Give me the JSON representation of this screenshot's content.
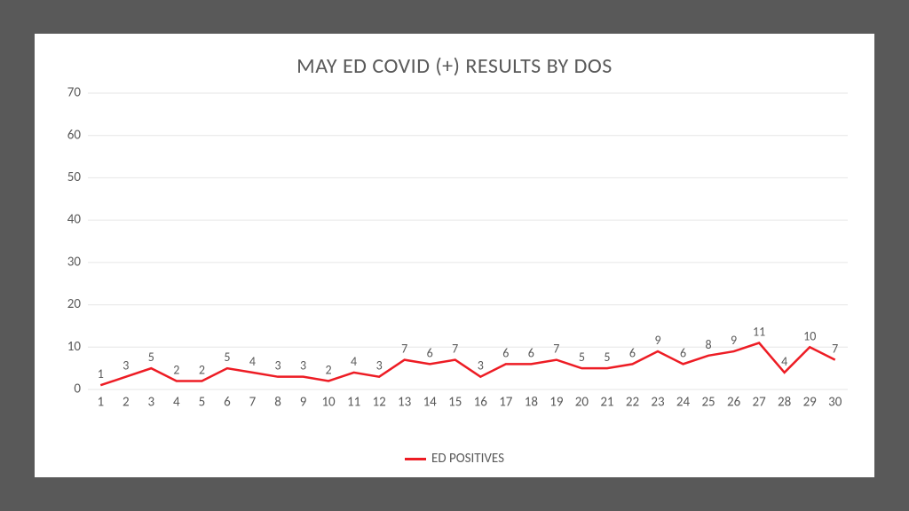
{
  "chart": {
    "type": "line",
    "title": "MAY ED COVID (+) RESULTS BY DOS",
    "title_fontsize": 24,
    "title_color": "#595959",
    "background_color": "#ffffff",
    "outer_background": "#595959",
    "grid_color": "#e6e6e6",
    "label_color": "#595959",
    "label_fontsize": 15,
    "data_label_fontsize": 14,
    "ylim": [
      0,
      70
    ],
    "ytick_step": 10,
    "x_categories": [
      "1",
      "2",
      "3",
      "4",
      "5",
      "6",
      "7",
      "8",
      "9",
      "10",
      "11",
      "12",
      "13",
      "14",
      "15",
      "16",
      "17",
      "18",
      "19",
      "20",
      "21",
      "22",
      "23",
      "24",
      "25",
      "26",
      "27",
      "28",
      "29",
      "30"
    ],
    "series": [
      {
        "name": "ED POSITIVES",
        "color": "#ed1c24",
        "line_width": 2.5,
        "values": [
          1,
          3,
          5,
          2,
          2,
          5,
          4,
          3,
          3,
          2,
          4,
          3,
          7,
          6,
          7,
          3,
          6,
          6,
          7,
          5,
          5,
          6,
          9,
          6,
          8,
          9,
          11,
          4,
          10,
          7
        ],
        "show_data_labels": true
      }
    ],
    "legend": {
      "position": "bottom",
      "items": [
        "ED POSITIVES"
      ]
    }
  }
}
